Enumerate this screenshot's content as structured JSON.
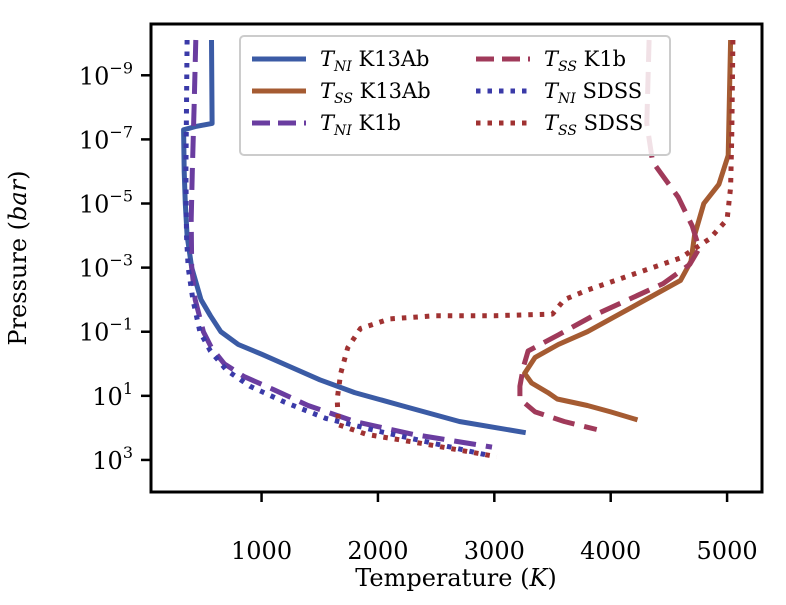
{
  "chart_data": {
    "type": "line",
    "xlabel": "Temperature (K)",
    "ylabel": "Pressure (bar)",
    "xlim": [
      50,
      5300
    ],
    "ylim_log10": [
      4.0,
      -10.6
    ],
    "y_inverted": true,
    "y_scale": "log",
    "grid": false,
    "legend_placement": "top",
    "x_ticks": [
      {
        "value": 1000,
        "label": "1000"
      },
      {
        "value": 2000,
        "label": "2000"
      },
      {
        "value": 3000,
        "label": "3000"
      },
      {
        "value": 4000,
        "label": "4000"
      },
      {
        "value": 5000,
        "label": "5000"
      }
    ],
    "y_ticks": [
      {
        "exp": -9,
        "base": "10",
        "sup": "−9"
      },
      {
        "exp": -7,
        "base": "10",
        "sup": "−7"
      },
      {
        "exp": -5,
        "base": "10",
        "sup": "−5"
      },
      {
        "exp": -3,
        "base": "10",
        "sup": "−3"
      },
      {
        "exp": -1,
        "base": "10",
        "sup": "−1"
      },
      {
        "exp": 1,
        "base": "10",
        "sup": "1"
      },
      {
        "exp": 3,
        "base": "10",
        "sup": "3"
      }
    ],
    "series": [
      {
        "name": "T_NI K13Ab",
        "name_main": "T",
        "name_sub": "NI",
        "name_rest": " K13Ab",
        "color": "#3b5ba5",
        "dash": "solid",
        "points": [
          [
            570,
            -10.1
          ],
          [
            575,
            -7.5
          ],
          [
            430,
            -7.4
          ],
          [
            330,
            -7.3
          ],
          [
            335,
            -6
          ],
          [
            345,
            -5
          ],
          [
            360,
            -4
          ],
          [
            400,
            -3
          ],
          [
            480,
            -2
          ],
          [
            560,
            -1.5
          ],
          [
            650,
            -1
          ],
          [
            800,
            -0.6
          ],
          [
            1000,
            -0.3
          ],
          [
            1250,
            0.1
          ],
          [
            1500,
            0.5
          ],
          [
            1800,
            0.9
          ],
          [
            2200,
            1.3
          ],
          [
            2700,
            1.8
          ],
          [
            3270,
            2.15
          ]
        ]
      },
      {
        "name": "T_SS K13Ab",
        "name_main": "T",
        "name_sub": "SS",
        "name_rest": " K13Ab",
        "color": "#a55b32",
        "dash": "solid",
        "points": [
          [
            5030,
            -10.1
          ],
          [
            5010,
            -6.5
          ],
          [
            4930,
            -5.6
          ],
          [
            4800,
            -5.0
          ],
          [
            4720,
            -4.0
          ],
          [
            4690,
            -3.2
          ],
          [
            4600,
            -2.6
          ],
          [
            4350,
            -2.1
          ],
          [
            4050,
            -1.5
          ],
          [
            3800,
            -1.0
          ],
          [
            3550,
            -0.6
          ],
          [
            3350,
            -0.2
          ],
          [
            3260,
            0.3
          ],
          [
            3320,
            0.6
          ],
          [
            3460,
            0.9
          ],
          [
            3540,
            1.1
          ],
          [
            3800,
            1.3
          ],
          [
            4000,
            1.5
          ],
          [
            4230,
            1.75
          ]
        ]
      },
      {
        "name": "T_NI K1b",
        "name_main": "T",
        "name_sub": "NI",
        "name_rest": " K1b",
        "color": "#6a3da0",
        "dash": "dashed",
        "points": [
          [
            435,
            -10.1
          ],
          [
            420,
            -8
          ],
          [
            405,
            -6
          ],
          [
            395,
            -4.5
          ],
          [
            400,
            -3
          ],
          [
            430,
            -2
          ],
          [
            500,
            -1
          ],
          [
            570,
            -0.5
          ],
          [
            680,
            0
          ],
          [
            850,
            0.4
          ],
          [
            1100,
            0.8
          ],
          [
            1400,
            1.3
          ],
          [
            1800,
            1.8
          ],
          [
            2300,
            2.2
          ],
          [
            2980,
            2.6
          ]
        ]
      },
      {
        "name": "T_SS K1b",
        "name_main": "T",
        "name_sub": "SS",
        "name_rest": " K1b",
        "color": "#a03a5a",
        "dash": "dashed",
        "points": [
          [
            4330,
            -10.1
          ],
          [
            4310,
            -7.5
          ],
          [
            4360,
            -6.3
          ],
          [
            4580,
            -5.2
          ],
          [
            4700,
            -4.3
          ],
          [
            4760,
            -3.6
          ],
          [
            4680,
            -3.1
          ],
          [
            4450,
            -2.5
          ],
          [
            4150,
            -2.0
          ],
          [
            3850,
            -1.5
          ],
          [
            3550,
            -0.9
          ],
          [
            3290,
            -0.4
          ],
          [
            3250,
            0.1
          ],
          [
            3220,
            0.7
          ],
          [
            3220,
            1.1
          ],
          [
            3350,
            1.5
          ],
          [
            3600,
            1.8
          ],
          [
            3880,
            2.05
          ]
        ]
      },
      {
        "name": "T_NI SDSS",
        "name_main": "T",
        "name_sub": "NI",
        "name_rest": " SDSS",
        "color": "#3a3aa8",
        "dash": "dotted",
        "points": [
          [
            360,
            -10.1
          ],
          [
            355,
            -8
          ],
          [
            350,
            -6
          ],
          [
            355,
            -4
          ],
          [
            370,
            -3
          ],
          [
            410,
            -2
          ],
          [
            470,
            -1
          ],
          [
            560,
            -0.4
          ],
          [
            700,
            0.2
          ],
          [
            900,
            0.7
          ],
          [
            1200,
            1.2
          ],
          [
            1550,
            1.7
          ],
          [
            2000,
            2.1
          ],
          [
            2500,
            2.5
          ],
          [
            2940,
            2.85
          ]
        ]
      },
      {
        "name": "T_SS SDSS",
        "name_main": "T",
        "name_sub": "SS",
        "name_rest": " SDSS",
        "color": "#a03232",
        "dash": "dotted",
        "points": [
          [
            5050,
            -10.1
          ],
          [
            5040,
            -7
          ],
          [
            5030,
            -5.5
          ],
          [
            5000,
            -4.5
          ],
          [
            4850,
            -3.9
          ],
          [
            4600,
            -3.3
          ],
          [
            4200,
            -2.8
          ],
          [
            3800,
            -2.3
          ],
          [
            3600,
            -2.0
          ],
          [
            3500,
            -1.55
          ],
          [
            3000,
            -1.5
          ],
          [
            2500,
            -1.5
          ],
          [
            2100,
            -1.4
          ],
          [
            1850,
            -1.1
          ],
          [
            1740,
            -0.5
          ],
          [
            1680,
            0.3
          ],
          [
            1650,
            1.1
          ],
          [
            1660,
            1.9
          ],
          [
            1900,
            2.2
          ],
          [
            2400,
            2.5
          ],
          [
            3020,
            2.9
          ]
        ]
      }
    ]
  }
}
